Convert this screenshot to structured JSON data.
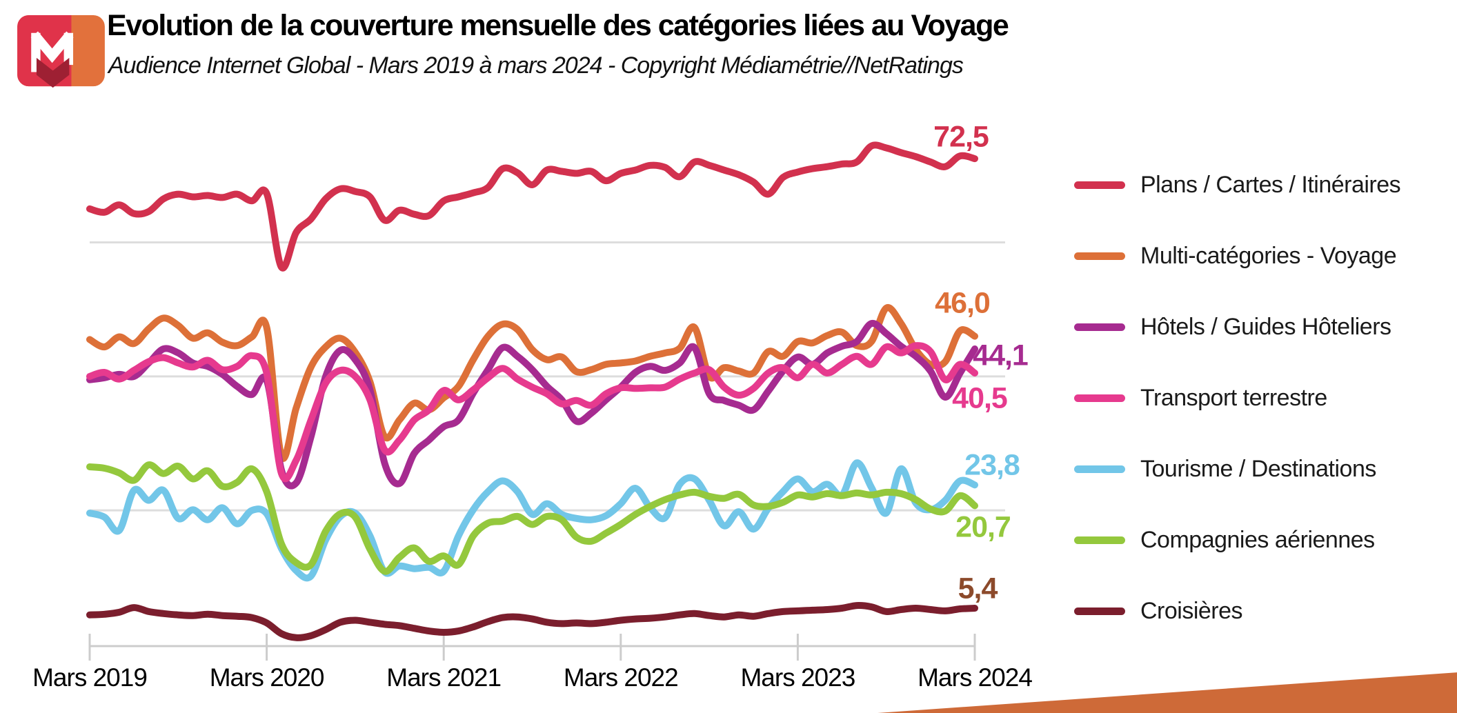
{
  "header": {
    "title": "Evolution de la couverture mensuelle des catégories liées au Voyage",
    "subtitle": "Audience Internet Global -  Mars 2019 à mars 2024 - Copyright Médiamétrie//NetRatings"
  },
  "logo": {
    "name": "mediametrie-logo",
    "red": "#E0334A",
    "orange": "#E2713C",
    "arrow": "#9E2033",
    "letter": "#ffffff"
  },
  "chart_data": {
    "type": "line",
    "title": "Evolution de la couverture mensuelle des catégories liées au Voyage",
    "subtitle": "Audience Internet Global - Mars 2019 à mars 2024 - Copyright Médiamétrie//NetRatings",
    "x_unit": "month",
    "x_start": "Mars 2019",
    "x_end": "Mars 2024",
    "x_tick_labels": [
      "Mars 2019",
      "Mars 2020",
      "Mars 2021",
      "Mars 2022",
      "Mars 2023",
      "Mars 2024"
    ],
    "x_tick_month_positions": [
      0,
      12,
      24,
      36,
      48,
      60
    ],
    "months_total": 61,
    "ylim": [
      0,
      80
    ],
    "gridline_values": [
      20,
      40,
      60
    ],
    "grid": "horizontal-only",
    "grid_color": "#DDDDDD",
    "axis_color": "#CCCCCC",
    "legend_position": "right",
    "series": [
      {
        "name": "Plans / Cartes / Itinéraires",
        "color": "#D2314E",
        "end_label": "72,5",
        "end_value": 72.5,
        "values": [
          65.0,
          64.5,
          65.6,
          64.3,
          64.6,
          66.5,
          67.2,
          66.8,
          67.0,
          66.7,
          67.2,
          66.2,
          67.3,
          56.3,
          61.5,
          63.5,
          66.5,
          68.0,
          67.6,
          66.8,
          63.3,
          64.8,
          64.2,
          64.0,
          66.2,
          66.8,
          67.4,
          68.2,
          71.0,
          70.4,
          68.6,
          70.8,
          70.6,
          70.3,
          70.6,
          69.2,
          70.3,
          70.8,
          71.5,
          71.2,
          69.8,
          72.0,
          71.5,
          70.8,
          70.1,
          69.0,
          67.2,
          69.7,
          70.5,
          71.0,
          71.3,
          71.7,
          72.0,
          74.4,
          74.1,
          73.4,
          72.8,
          72.0,
          71.3,
          72.9,
          72.5
        ]
      },
      {
        "name": "Multi-catégories - Voyage",
        "color": "#DD7038",
        "end_label": "46,0",
        "end_value": 46.0,
        "values": [
          45.5,
          44.4,
          45.9,
          44.9,
          47.1,
          48.7,
          47.6,
          45.7,
          46.5,
          45.1,
          44.6,
          45.9,
          47.3,
          28.1,
          35.3,
          41.4,
          44.4,
          45.7,
          43.6,
          39.2,
          31.0,
          33.5,
          36.0,
          35.0,
          36.8,
          38.5,
          42.5,
          46.0,
          47.8,
          47.0,
          44.0,
          42.5,
          42.9,
          40.7,
          41.0,
          41.8,
          42.0,
          42.3,
          43.0,
          43.5,
          44.2,
          47.3,
          40.0,
          41.3,
          40.8,
          40.5,
          43.7,
          43.0,
          45.2,
          45.0,
          46.1,
          46.6,
          44.6,
          45.2,
          50.2,
          47.9,
          44.0,
          41.8,
          42.2,
          46.8,
          46.0
        ]
      },
      {
        "name": "Hôtels / Guides Hôteliers",
        "color": "#A62B90",
        "end_label": "44,1",
        "end_value": 44.1,
        "values": [
          39.5,
          39.8,
          40.3,
          40.0,
          42.0,
          44.1,
          43.5,
          42.0,
          41.5,
          40.3,
          38.5,
          37.3,
          39.4,
          26.0,
          24.1,
          31.0,
          40.0,
          43.9,
          42.5,
          38.0,
          27.0,
          24.0,
          28.5,
          30.5,
          32.5,
          33.5,
          37.5,
          41.0,
          44.3,
          43.0,
          41.0,
          38.5,
          36.5,
          33.3,
          34.5,
          36.5,
          38.4,
          40.6,
          41.5,
          40.9,
          42.0,
          44.3,
          37.4,
          36.4,
          35.7,
          35.0,
          37.8,
          40.8,
          42.9,
          41.8,
          43.5,
          44.5,
          45.2,
          47.9,
          46.4,
          44.5,
          43.0,
          40.8,
          36.9,
          40.5,
          44.1
        ]
      },
      {
        "name": "Transport terrestre",
        "color": "#E63A8E",
        "end_label": "40,5",
        "end_value": 40.5,
        "values": [
          40.0,
          40.6,
          39.6,
          40.9,
          42.2,
          42.8,
          42.0,
          41.4,
          42.4,
          41.0,
          41.5,
          43.1,
          40.5,
          25.5,
          27.5,
          33.5,
          39.0,
          40.9,
          40.0,
          36.5,
          29.0,
          30.5,
          33.5,
          35.0,
          37.9,
          36.5,
          38.0,
          39.8,
          41.2,
          39.6,
          38.4,
          37.4,
          35.9,
          36.4,
          35.7,
          37.4,
          38.3,
          38.2,
          38.3,
          38.4,
          39.6,
          40.5,
          41.0,
          38.4,
          37.2,
          38.2,
          40.5,
          41.3,
          39.8,
          41.8,
          40.5,
          41.8,
          43.0,
          41.8,
          44.4,
          43.5,
          44.6,
          43.7,
          39.5,
          41.8,
          40.5
        ]
      },
      {
        "name": "Tourisme / Destinations",
        "color": "#72C6E8",
        "end_label": "23,8",
        "end_value": 23.8,
        "values": [
          19.6,
          19.0,
          17.0,
          23.0,
          21.5,
          23.0,
          18.8,
          20.1,
          18.6,
          20.4,
          18.0,
          20.0,
          19.5,
          14.3,
          11.0,
          10.2,
          15.6,
          19.1,
          19.6,
          16.2,
          10.8,
          11.7,
          11.3,
          11.5,
          10.9,
          16.2,
          20.1,
          22.8,
          24.4,
          22.8,
          19.4,
          21.0,
          19.4,
          18.8,
          18.6,
          19.2,
          21.0,
          23.3,
          20.4,
          18.9,
          23.9,
          24.7,
          21.5,
          17.7,
          19.8,
          17.2,
          20.3,
          22.8,
          24.7,
          22.8,
          23.9,
          22.3,
          27.1,
          23.4,
          19.6,
          26.2,
          21.1,
          20.1,
          21.5,
          24.4,
          23.8
        ]
      },
      {
        "name": "Compagnies aériennes",
        "color": "#94C83D",
        "end_label": "20,7",
        "end_value": 20.7,
        "values": [
          26.5,
          26.3,
          25.6,
          24.5,
          26.8,
          25.5,
          26.6,
          24.7,
          25.9,
          23.6,
          24.2,
          26.2,
          22.8,
          15.0,
          12.2,
          11.9,
          16.9,
          19.5,
          19.0,
          14.2,
          10.9,
          13.0,
          14.4,
          12.4,
          13.2,
          11.9,
          16.2,
          18.1,
          18.4,
          19.1,
          17.9,
          19.1,
          18.6,
          16.0,
          15.4,
          16.6,
          17.9,
          19.4,
          20.6,
          21.6,
          22.3,
          22.7,
          22.1,
          21.8,
          22.4,
          20.8,
          20.6,
          21.2,
          22.3,
          22.0,
          22.5,
          22.2,
          22.6,
          22.3,
          22.7,
          22.5,
          21.6,
          20.2,
          19.9,
          22.2,
          20.7
        ]
      },
      {
        "name": "Croisières",
        "color": "#7B1E2D",
        "end_label": "5,4",
        "end_value": 5.4,
        "end_label_color": "#8C4A2B",
        "values": [
          4.4,
          4.5,
          4.8,
          5.5,
          4.9,
          4.6,
          4.4,
          4.3,
          4.5,
          4.3,
          4.2,
          4.0,
          3.2,
          1.6,
          1.0,
          1.3,
          2.2,
          3.3,
          3.6,
          3.3,
          3.0,
          2.8,
          2.4,
          2.0,
          1.8,
          2.0,
          2.6,
          3.4,
          4.0,
          4.1,
          3.8,
          3.3,
          3.1,
          3.2,
          3.1,
          3.3,
          3.6,
          3.8,
          3.9,
          4.1,
          4.4,
          4.6,
          4.3,
          4.1,
          4.4,
          4.2,
          4.6,
          4.9,
          5.0,
          5.1,
          5.2,
          5.4,
          5.8,
          5.6,
          4.9,
          5.2,
          5.4,
          5.2,
          5.0,
          5.3,
          5.4
        ]
      }
    ]
  },
  "footer": {
    "ribbon_color": "#CE6A38"
  }
}
